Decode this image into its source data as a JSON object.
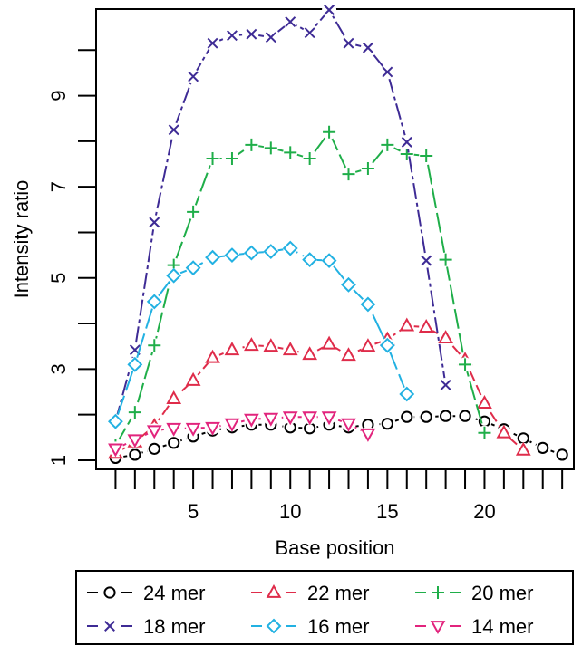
{
  "chart_data": {
    "type": "line",
    "title": "",
    "xlabel": "Base position",
    "ylabel": "Intensity ratio",
    "xlim": [
      0,
      24.6
    ],
    "ylim": [
      0.8,
      10.9
    ],
    "x_ticks": [
      5,
      10,
      15,
      20
    ],
    "x_minor_ticks": [
      1,
      2,
      3,
      4,
      5,
      6,
      7,
      8,
      9,
      10,
      11,
      12,
      13,
      14,
      15,
      16,
      17,
      18,
      19,
      20,
      21,
      22,
      23,
      24
    ],
    "y_ticks": [
      1,
      3,
      5,
      7,
      9
    ],
    "y_minor_ticks": [
      2,
      4,
      6,
      8,
      10
    ],
    "grid": false,
    "legend_position": "bottom",
    "series": [
      {
        "name": "24 mer",
        "color": "#000000",
        "marker": "circle",
        "dash": "4,5",
        "x": [
          1,
          2,
          3,
          4,
          5,
          6,
          7,
          8,
          9,
          10,
          11,
          12,
          13,
          14,
          15,
          16,
          17,
          18,
          19,
          20,
          21,
          22,
          23,
          24
        ],
        "y": [
          1.05,
          1.12,
          1.25,
          1.38,
          1.52,
          1.65,
          1.72,
          1.78,
          1.78,
          1.72,
          1.7,
          1.78,
          1.72,
          1.78,
          1.8,
          1.95,
          1.95,
          1.97,
          1.97,
          1.85,
          1.68,
          1.48,
          1.27,
          1.12
        ]
      },
      {
        "name": "22 mer",
        "color": "#df2c4a",
        "marker": "triangle-up",
        "dash": "12,5",
        "x": [
          1,
          2,
          3,
          4,
          5,
          6,
          7,
          8,
          9,
          10,
          11,
          12,
          13,
          14,
          15,
          16,
          17,
          18,
          19,
          20,
          21,
          22
        ],
        "y": [
          1.15,
          1.4,
          1.75,
          2.35,
          2.75,
          3.25,
          3.42,
          3.52,
          3.5,
          3.42,
          3.32,
          3.55,
          3.3,
          3.5,
          3.65,
          3.95,
          3.92,
          3.68,
          3.2,
          2.25,
          1.6,
          1.22
        ]
      },
      {
        "name": "20 mer",
        "color": "#1fae49",
        "marker": "plus",
        "dash": "22,5",
        "x": [
          1,
          2,
          3,
          4,
          5,
          6,
          7,
          8,
          9,
          10,
          11,
          12,
          13,
          14,
          15,
          16,
          17,
          18,
          19,
          20
        ],
        "y": [
          1.32,
          2.05,
          3.52,
          5.28,
          6.45,
          7.62,
          7.62,
          7.92,
          7.85,
          7.75,
          7.62,
          8.2,
          7.28,
          7.4,
          7.92,
          7.72,
          7.68,
          5.4,
          3.1,
          1.6
        ]
      },
      {
        "name": "18 mer",
        "color": "#3e2b95",
        "marker": "x",
        "dash": "18,4,4,4",
        "x": [
          1,
          2,
          3,
          4,
          5,
          6,
          7,
          8,
          9,
          10,
          11,
          12,
          13,
          14,
          15,
          16,
          17,
          18
        ],
        "y": [
          1.85,
          3.42,
          6.22,
          8.25,
          9.42,
          10.15,
          10.32,
          10.35,
          10.28,
          10.62,
          10.38,
          10.88,
          10.15,
          10.05,
          9.52,
          7.98,
          5.38,
          2.65
        ]
      },
      {
        "name": "16 mer",
        "color": "#22b1e2",
        "marker": "diamond",
        "dash": "30,6",
        "x": [
          1,
          2,
          3,
          4,
          5,
          6,
          7,
          8,
          9,
          10,
          11,
          12,
          13,
          14,
          15,
          16
        ],
        "y": [
          1.85,
          3.1,
          4.48,
          5.05,
          5.22,
          5.45,
          5.5,
          5.55,
          5.58,
          5.65,
          5.4,
          5.38,
          4.85,
          4.42,
          3.52,
          2.45
        ]
      },
      {
        "name": "14 mer",
        "color": "#e2247d",
        "marker": "triangle-down",
        "dash": "4,5",
        "x": [
          1,
          2,
          3,
          4,
          5,
          6,
          7,
          8,
          9,
          10,
          11,
          12,
          13,
          14
        ],
        "y": [
          1.25,
          1.45,
          1.65,
          1.7,
          1.7,
          1.72,
          1.8,
          1.9,
          1.92,
          1.95,
          1.95,
          1.95,
          1.8,
          1.58
        ]
      }
    ]
  }
}
